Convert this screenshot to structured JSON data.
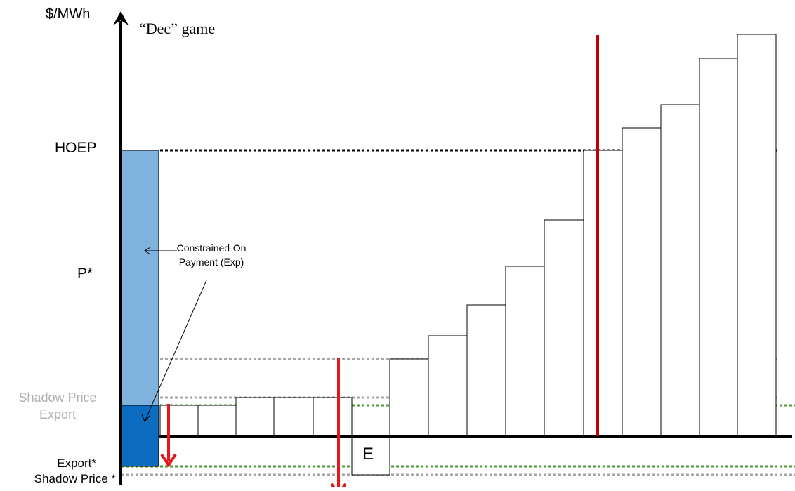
{
  "labels": {
    "y_axis_unit": "$/MWh",
    "title": "“Dec” game",
    "hoep": "HOEP",
    "p_star": "P*",
    "shadow_price_export_line1": "Shadow Price",
    "shadow_price_export_line2": "Export",
    "export_star": "Export*",
    "shadow_price_star": "Shadow Price *",
    "annotation_line1": "Constrained-On",
    "annotation_line2": "Payment (Exp)",
    "e_box": "E"
  },
  "colors": {
    "axis": "#000000",
    "bars_stroke": "#000000",
    "light_blue": "#7fb2dd",
    "dark_blue": "#0b6cc0",
    "red_arrow": "#e8161b",
    "dark_red_line": "#c00000",
    "green_dotted": "#4c9a3a",
    "gray_dotted": "#a6a6a6",
    "black_dotted": "#000000"
  },
  "icons": {
    "y_arrow": "arrowhead-up",
    "red_arrow": "arrowhead-down"
  }
}
